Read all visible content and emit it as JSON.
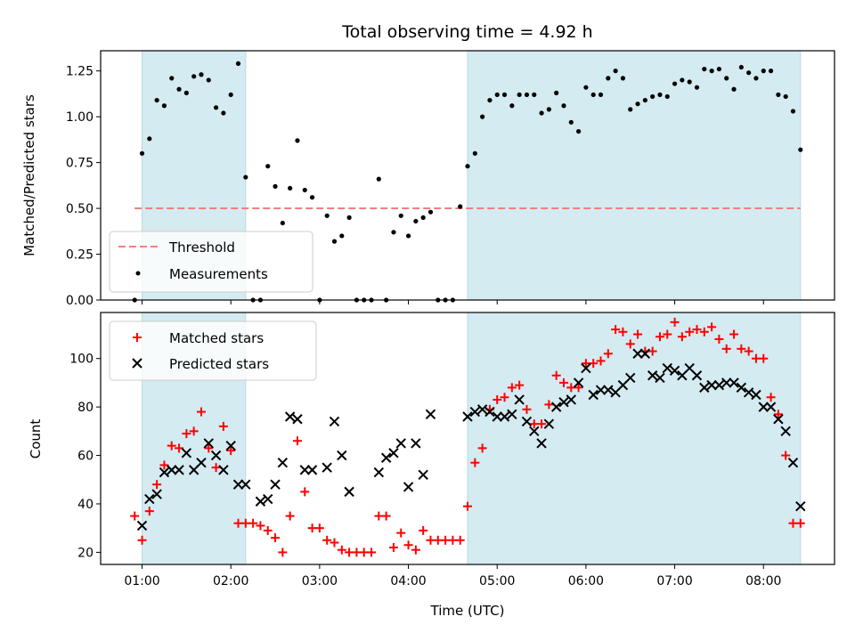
{
  "chart_data": [
    {
      "type": "scatter",
      "title": "Total observing time = 4.92 h",
      "xlabel": "",
      "ylabel": "Matched/Predicted stars",
      "ylim": [
        0,
        1.36
      ],
      "xlim": [
        "00:32",
        "08:48"
      ],
      "yticks": [
        0.0,
        0.25,
        0.5,
        0.75,
        1.0,
        1.25
      ],
      "ytick_labels": [
        "0.00",
        "0.25",
        "0.50",
        "0.75",
        "1.00",
        "1.25"
      ],
      "legend_placement": "lower-left",
      "highlight_spans": [
        [
          "01:00",
          "02:10"
        ],
        [
          "04:40",
          "08:25"
        ]
      ],
      "highlight_color": "#d4ebf1",
      "threshold": {
        "name": "Threshold",
        "value": 0.5,
        "x": [
          "00:55",
          "08:25"
        ],
        "color": "#f08080"
      },
      "series": [
        {
          "name": "Measurements",
          "color": "#000000",
          "x": [
            "00:55",
            "01:00",
            "01:05",
            "01:10",
            "01:15",
            "01:20",
            "01:25",
            "01:30",
            "01:35",
            "01:40",
            "01:45",
            "01:50",
            "01:55",
            "02:00",
            "02:05",
            "02:10",
            "02:15",
            "02:20",
            "02:25",
            "02:30",
            "02:35",
            "02:40",
            "02:45",
            "02:50",
            "02:55",
            "03:00",
            "03:05",
            "03:10",
            "03:15",
            "03:20",
            "03:25",
            "03:30",
            "03:35",
            "03:40",
            "03:45",
            "03:50",
            "03:55",
            "04:00",
            "04:05",
            "04:10",
            "04:15",
            "04:20",
            "04:25",
            "04:30",
            "04:35",
            "04:40",
            "04:45",
            "04:50",
            "04:55",
            "05:00",
            "05:05",
            "05:10",
            "05:15",
            "05:20",
            "05:25",
            "05:30",
            "05:35",
            "05:40",
            "05:45",
            "05:50",
            "05:55",
            "06:00",
            "06:05",
            "06:10",
            "06:15",
            "06:20",
            "06:25",
            "06:30",
            "06:35",
            "06:40",
            "06:45",
            "06:50",
            "06:55",
            "07:00",
            "07:05",
            "07:10",
            "07:15",
            "07:20",
            "07:25",
            "07:30",
            "07:35",
            "07:40",
            "07:45",
            "07:50",
            "07:55",
            "08:00",
            "08:05",
            "08:10",
            "08:15",
            "08:20",
            "08:25"
          ],
          "y": [
            0.0,
            0.8,
            0.88,
            1.09,
            1.06,
            1.21,
            1.15,
            1.13,
            1.22,
            1.23,
            1.2,
            1.05,
            1.02,
            1.12,
            1.29,
            0.67,
            0.0,
            0.0,
            0.73,
            0.62,
            0.42,
            0.61,
            0.87,
            0.6,
            0.56,
            0.0,
            0.46,
            0.32,
            0.35,
            0.45,
            0.0,
            0.0,
            0.0,
            0.66,
            0.0,
            0.37,
            0.46,
            0.35,
            0.43,
            0.45,
            0.48,
            0.0,
            0.0,
            0.0,
            0.51,
            0.73,
            0.8,
            1.0,
            1.09,
            1.12,
            1.12,
            1.06,
            1.12,
            1.12,
            1.12,
            1.02,
            1.04,
            1.13,
            1.06,
            0.97,
            0.92,
            1.16,
            1.12,
            1.12,
            1.21,
            1.25,
            1.21,
            1.04,
            1.07,
            1.09,
            1.11,
            1.12,
            1.11,
            1.18,
            1.2,
            1.19,
            1.16,
            1.26,
            1.25,
            1.26,
            1.21,
            1.15,
            1.27,
            1.24,
            1.21,
            1.25,
            1.25,
            1.12,
            1.11,
            1.03,
            0.82
          ]
        }
      ]
    },
    {
      "type": "scatter",
      "title": "",
      "xlabel": "Time (UTC)",
      "ylabel": "Count",
      "ylim": [
        15,
        119
      ],
      "xlim": [
        "00:32",
        "08:48"
      ],
      "xticks": [
        "01:00",
        "02:00",
        "03:00",
        "04:00",
        "05:00",
        "06:00",
        "07:00",
        "08:00"
      ],
      "yticks": [
        20,
        40,
        60,
        80,
        100
      ],
      "ytick_labels": [
        "20",
        "40",
        "60",
        "80",
        "100"
      ],
      "legend_placement": "upper-left",
      "highlight_spans": [
        [
          "01:00",
          "02:10"
        ],
        [
          "04:40",
          "08:25"
        ]
      ],
      "highlight_color": "#d4ebf1",
      "series": [
        {
          "name": "Matched stars",
          "marker": "plus",
          "color": "#ff0000",
          "x": [
            "00:55",
            "01:00",
            "01:05",
            "01:10",
            "01:15",
            "01:20",
            "01:25",
            "01:30",
            "01:35",
            "01:40",
            "01:45",
            "01:50",
            "01:55",
            "02:00",
            "02:05",
            "02:10",
            "02:15",
            "02:20",
            "02:25",
            "02:30",
            "02:35",
            "02:40",
            "02:45",
            "02:50",
            "02:55",
            "03:00",
            "03:05",
            "03:10",
            "03:15",
            "03:20",
            "03:25",
            "03:30",
            "03:35",
            "03:40",
            "03:45",
            "03:50",
            "03:55",
            "04:00",
            "04:05",
            "04:10",
            "04:15",
            "04:20",
            "04:25",
            "04:30",
            "04:35",
            "04:40",
            "04:45",
            "04:50",
            "04:55",
            "05:00",
            "05:05",
            "05:10",
            "05:15",
            "05:20",
            "05:25",
            "05:30",
            "05:35",
            "05:40",
            "05:45",
            "05:50",
            "05:55",
            "06:00",
            "06:05",
            "06:10",
            "06:15",
            "06:20",
            "06:25",
            "06:30",
            "06:35",
            "06:40",
            "06:45",
            "06:50",
            "06:55",
            "07:00",
            "07:05",
            "07:10",
            "07:15",
            "07:20",
            "07:25",
            "07:30",
            "07:35",
            "07:40",
            "07:45",
            "07:50",
            "07:55",
            "08:00",
            "08:05",
            "08:10",
            "08:15",
            "08:20",
            "08:25"
          ],
          "y": [
            35,
            25,
            37,
            48,
            56,
            64,
            63,
            69,
            70,
            78,
            63,
            55,
            72,
            62,
            32,
            32,
            32,
            31,
            29,
            26,
            20,
            35,
            66,
            45,
            30,
            30,
            25,
            24,
            21,
            20,
            20,
            20,
            20,
            35,
            35,
            22,
            28,
            23,
            21,
            29,
            25,
            25,
            25,
            25,
            25,
            39,
            57,
            63,
            79,
            83,
            84,
            88,
            89,
            79,
            73,
            73,
            81,
            93,
            90,
            88,
            88,
            98,
            98,
            99,
            102,
            112,
            111,
            106,
            110,
            103,
            103,
            109,
            110,
            115,
            109,
            111,
            112,
            111,
            113,
            108,
            104,
            110,
            104,
            103,
            100,
            100,
            84,
            77,
            60,
            32,
            32
          ]
        },
        {
          "name": "Predicted stars",
          "marker": "x",
          "color": "#000000",
          "x": [
            "01:00",
            "01:05",
            "01:10",
            "01:15",
            "01:20",
            "01:25",
            "01:30",
            "01:35",
            "01:40",
            "01:45",
            "01:50",
            "01:55",
            "02:00",
            "02:05",
            "02:10",
            "02:20",
            "02:25",
            "02:30",
            "02:35",
            "02:40",
            "02:45",
            "02:50",
            "02:55",
            "03:05",
            "03:10",
            "03:15",
            "03:20",
            "03:40",
            "03:45",
            "03:50",
            "03:55",
            "04:00",
            "04:05",
            "04:10",
            "04:15",
            "04:40",
            "04:45",
            "04:50",
            "04:55",
            "05:00",
            "05:05",
            "05:10",
            "05:15",
            "05:20",
            "05:25",
            "05:30",
            "05:35",
            "05:40",
            "05:45",
            "05:50",
            "05:55",
            "06:00",
            "06:05",
            "06:10",
            "06:15",
            "06:20",
            "06:25",
            "06:30",
            "06:35",
            "06:40",
            "06:45",
            "06:50",
            "06:55",
            "07:00",
            "07:05",
            "07:10",
            "07:15",
            "07:20",
            "07:25",
            "07:30",
            "07:35",
            "07:40",
            "07:45",
            "07:50",
            "07:55",
            "08:00",
            "08:05",
            "08:10",
            "08:15",
            "08:20",
            "08:25"
          ],
          "y": [
            31,
            42,
            44,
            53,
            54,
            54,
            61,
            54,
            57,
            65,
            60,
            54,
            64,
            48,
            48,
            41,
            42,
            48,
            57,
            76,
            75,
            54,
            54,
            55,
            74,
            60,
            45,
            53,
            59,
            61,
            65,
            47,
            65,
            52,
            77,
            76,
            78,
            79,
            78,
            76,
            76,
            77,
            83,
            74,
            70,
            65,
            73,
            80,
            82,
            83,
            90,
            96,
            85,
            87,
            87,
            86,
            89,
            92,
            102,
            102,
            93,
            92,
            96,
            95,
            93,
            96,
            93,
            88,
            89,
            89,
            90,
            90,
            88,
            86,
            85,
            80,
            80,
            75,
            70,
            57,
            39
          ]
        }
      ]
    }
  ]
}
